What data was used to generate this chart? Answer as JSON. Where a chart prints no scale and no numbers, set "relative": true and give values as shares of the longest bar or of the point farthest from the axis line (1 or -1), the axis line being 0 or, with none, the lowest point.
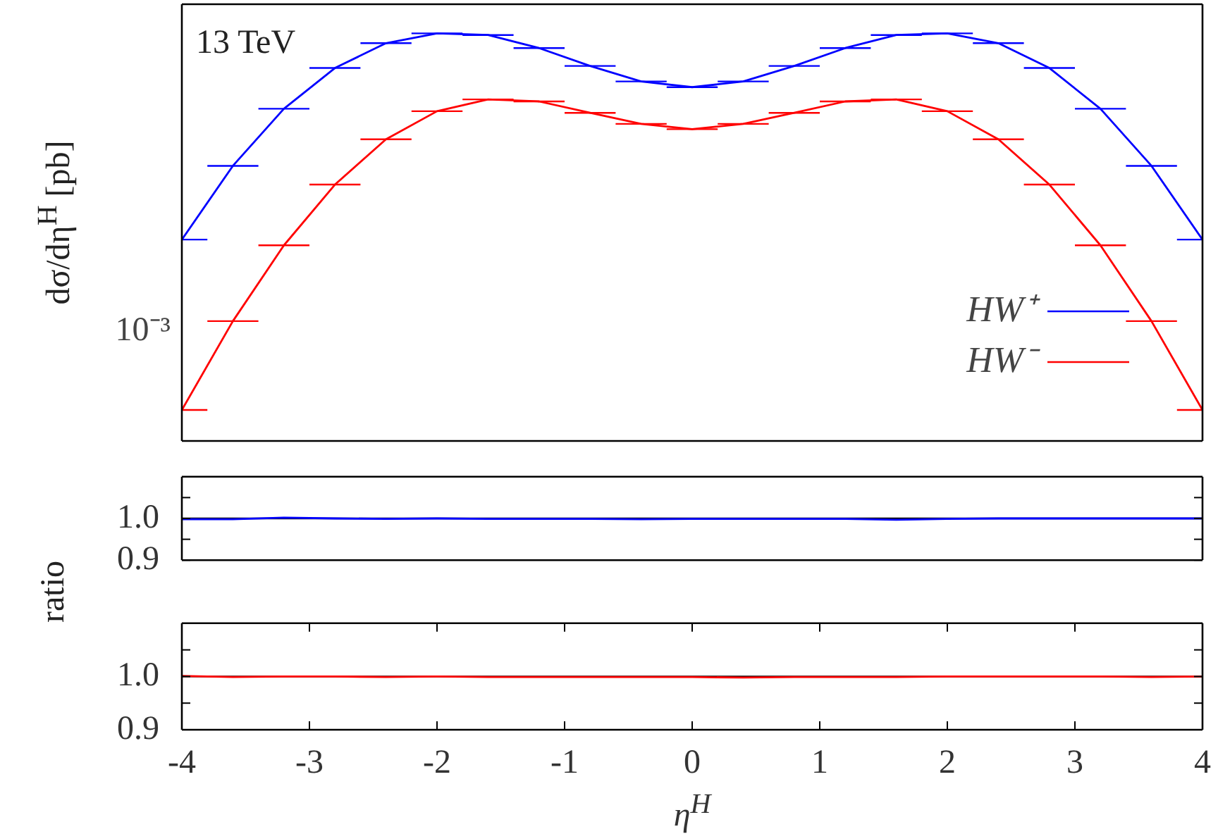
{
  "chart_data": [
    {
      "type": "line",
      "ylabel": "dσ/dη$^{H}$ [pb]",
      "annotations": [
        "13 TeV",
        "10⁻³"
      ],
      "legend": "bottom right",
      "relative": true,
      "x": [
        -4,
        -3.6,
        -3.2,
        -2.8,
        -2.4,
        -2,
        -1.6,
        -1.2,
        -0.8,
        -0.4,
        0,
        0.4,
        0.8,
        1.2,
        1.6,
        2,
        2.4,
        2.8,
        3.2,
        3.6,
        4
      ],
      "series": [
        {
          "name": "HW⁺",
          "color": "#0000ff",
          "values": [
            0.494,
            0.675,
            0.815,
            0.915,
            0.976,
            1,
            0.996,
            0.964,
            0.92,
            0.882,
            0.868,
            0.882,
            0.92,
            0.964,
            0.996,
            1,
            0.976,
            0.915,
            0.815,
            0.675,
            0.494
          ],
          "xerrors": [
            [
              -4,
              -3.8
            ],
            0.2,
            0.2,
            0.2,
            0.2,
            0.2,
            0.2,
            0.2,
            0.2,
            0.2,
            0.2,
            0.2,
            0.2,
            0.2,
            0.2,
            0.2,
            0.2,
            0.2,
            0.2,
            0.2,
            [
              3.8,
              4
            ]
          ]
        },
        {
          "name": "HW⁻",
          "color": "#ff0000",
          "values": [
            0.076,
            0.294,
            0.48,
            0.629,
            0.74,
            0.809,
            0.838,
            0.833,
            0.805,
            0.778,
            0.765,
            0.778,
            0.805,
            0.833,
            0.838,
            0.809,
            0.74,
            0.629,
            0.48,
            0.294,
            0.076
          ],
          "xerrors": [
            [
              -4,
              -3.8
            ],
            0.2,
            0.2,
            0.2,
            0.2,
            0.2,
            0.2,
            0.2,
            0.2,
            0.2,
            0.2,
            0.2,
            0.2,
            0.2,
            0.2,
            0.2,
            0.2,
            0.2,
            0.2,
            0.2,
            [
              3.8,
              4
            ]
          ]
        }
      ],
      "xlim": [
        -4,
        4
      ],
      "xticks": [
        -4,
        -3,
        -2,
        -1,
        0,
        1,
        2,
        3,
        4
      ],
      "tick_labels": false
    },
    {
      "type": "line",
      "ylabel": "ratio",
      "x": [
        -4,
        -3.6,
        -3.2,
        -2.8,
        -2.4,
        -2,
        -1.6,
        -1.2,
        -0.8,
        -0.4,
        0,
        0.4,
        0.8,
        1.2,
        1.6,
        2,
        2.4,
        2.8,
        3.2,
        3.6,
        4
      ],
      "series": [
        {
          "color": "#0000ff",
          "values": [
            0.998,
            0.998,
            1.002,
            1.0,
            0.999,
            1.0,
            0.999,
            0.999,
            0.999,
            0.998,
            0.999,
            0.999,
            0.999,
            0.999,
            0.997,
            0.999,
            1.0,
            1.0,
            1.0,
            1.0,
            1.0
          ]
        }
      ],
      "ref_lines": [
        {
          "axis": "y",
          "value": 1,
          "color": "#000000"
        }
      ],
      "ylim": [
        0.9,
        1.1
      ],
      "yticks": [
        {
          "value": 0.9,
          "label": "0.9"
        },
        {
          "value": 0.95,
          "label": null
        },
        {
          "value": 1,
          "label": "1.0"
        },
        {
          "value": 1.05,
          "label": null
        }
      ],
      "xlim": [
        -4,
        4
      ],
      "xticks": [
        -4,
        -3,
        -2,
        -1,
        0,
        1,
        2,
        3,
        4
      ],
      "tick_labels": "y"
    },
    {
      "type": "line",
      "xlabel": "η$^{H}$",
      "x": [
        -4,
        -3.6,
        -3.2,
        -2.8,
        -2.4,
        -2,
        -1.6,
        -1.2,
        -0.8,
        -0.4,
        0,
        0.4,
        0.8,
        1.2,
        1.6,
        2,
        2.4,
        2.8,
        3.2,
        3.6,
        4
      ],
      "series": [
        {
          "color": "#ff0000",
          "values": [
            1.001,
            0.999,
            1.0,
            1.0,
            0.999,
            1.0,
            0.999,
            0.999,
            0.999,
            0.999,
            0.999,
            0.998,
            0.999,
            0.999,
            0.999,
            1.0,
            1.0,
            1.0,
            1.0,
            0.999,
            1.0
          ]
        }
      ],
      "ref_lines": [
        {
          "axis": "y",
          "value": 1,
          "color": "#000000"
        }
      ],
      "ylim": [
        0.9,
        1.1
      ],
      "yticks": [
        {
          "value": 0.9,
          "label": "0.9"
        },
        {
          "value": 0.95,
          "label": null
        },
        {
          "value": 1,
          "label": "1.0"
        },
        {
          "value": 1.05,
          "label": null
        }
      ],
      "xlim": [
        -4,
        4
      ],
      "xticks": [
        -4,
        -3,
        -2,
        -1,
        0,
        1,
        2,
        3,
        4
      ]
    }
  ]
}
